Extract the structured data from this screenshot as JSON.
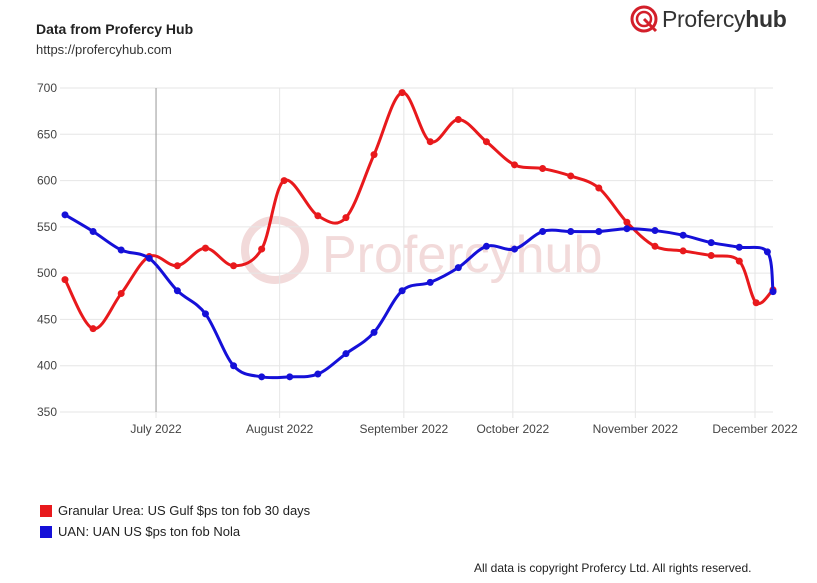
{
  "header": {
    "title": "Data from Profercy Hub",
    "url": "https://profercyhub.com"
  },
  "brand": {
    "name_regular": "Profercy",
    "name_bold": "hub",
    "watermark_text": "Profercyhub"
  },
  "chart_data": {
    "type": "line",
    "title": "Data from Profercy Hub",
    "xlabel": "",
    "ylabel": "",
    "ylim": [
      350,
      700
    ],
    "yticks": [
      350,
      400,
      450,
      500,
      550,
      600,
      650,
      700
    ],
    "xlim": [
      1.0,
      13.6
    ],
    "xticks": [
      {
        "label": "July 2022",
        "pos": 2.62
      },
      {
        "label": "August 2022",
        "pos": 4.82
      },
      {
        "label": "September 2022",
        "pos": 7.03
      },
      {
        "label": "October 2022",
        "pos": 8.97
      },
      {
        "label": "November 2022",
        "pos": 11.15
      },
      {
        "label": "December 2022",
        "pos": 13.28
      }
    ],
    "crosshair_x": 2.62,
    "series": [
      {
        "name": "Granular Urea: US Gulf $ps ton fob 30 days",
        "color": "#e8191c",
        "x": [
          1.0,
          1.5,
          2.0,
          2.5,
          3.0,
          3.5,
          4.0,
          4.5,
          4.9,
          5.5,
          6.0,
          6.5,
          7.0,
          7.5,
          8.0,
          8.5,
          9.0,
          9.5,
          10.0,
          10.5,
          11.0,
          11.5,
          12.0,
          12.5,
          13.0,
          13.3,
          13.6
        ],
        "values": [
          493,
          440,
          478,
          518,
          508,
          527,
          508,
          526,
          600,
          562,
          560,
          628,
          695,
          642,
          666,
          642,
          617,
          613,
          605,
          592,
          555,
          529,
          524,
          519,
          513,
          468,
          482
        ]
      },
      {
        "name": "UAN: UAN US $ps ton fob Nola",
        "color": "#1510d8",
        "x": [
          1.0,
          1.5,
          2.0,
          2.5,
          3.0,
          3.5,
          4.0,
          4.5,
          5.0,
          5.5,
          6.0,
          6.5,
          7.0,
          7.5,
          8.0,
          8.5,
          9.0,
          9.5,
          10.0,
          10.5,
          11.0,
          11.5,
          12.0,
          12.5,
          13.0,
          13.5,
          13.6
        ],
        "values": [
          563,
          545,
          525,
          516,
          481,
          456,
          400,
          388,
          388,
          391,
          413,
          436,
          481,
          490,
          506,
          529,
          526,
          545,
          545,
          545,
          548,
          546,
          541,
          533,
          528,
          523,
          480
        ]
      }
    ],
    "legend_position": "bottom-left"
  },
  "legend": {
    "items": [
      {
        "label": "Granular Urea: US Gulf $ps ton fob 30 days",
        "color": "#e8191c"
      },
      {
        "label": "UAN: UAN US $ps ton fob Nola",
        "color": "#1510d8"
      }
    ]
  },
  "footer": {
    "copyright": "All data is copyright Profercy Ltd. All rights reserved."
  },
  "colors": {
    "grid": "#e6e6e6",
    "axis_text": "#444444",
    "crosshair": "#999999",
    "watermark": "#f2dada"
  }
}
